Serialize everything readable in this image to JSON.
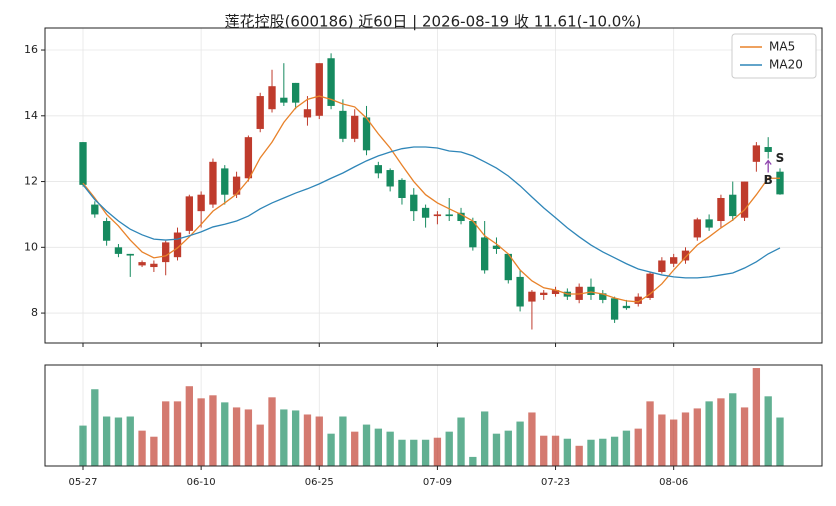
{
  "chart_data": {
    "type": "candlestick",
    "title": "莲花控股(600186) 近60日  |  2026-08-19 收 11.61(-10.0%)",
    "categories": [
      "05-27",
      null,
      null,
      null,
      null,
      null,
      null,
      null,
      null,
      null,
      "06-10",
      null,
      null,
      null,
      null,
      null,
      null,
      null,
      null,
      null,
      "06-25",
      null,
      null,
      null,
      null,
      null,
      null,
      null,
      null,
      null,
      "07-09",
      null,
      null,
      null,
      null,
      null,
      null,
      null,
      null,
      null,
      "07-23",
      null,
      null,
      null,
      null,
      null,
      null,
      null,
      null,
      null,
      "08-06",
      null,
      null,
      null,
      null,
      null,
      null,
      null,
      null,
      null
    ],
    "open": [
      13.2,
      11.3,
      10.8,
      10.0,
      9.8,
      9.45,
      9.4,
      9.55,
      9.7,
      10.5,
      11.1,
      11.3,
      12.4,
      11.6,
      12.1,
      13.6,
      14.2,
      14.55,
      15.0,
      13.95,
      14.0,
      15.75,
      14.15,
      13.3,
      13.95,
      12.5,
      12.35,
      12.05,
      11.6,
      11.2,
      10.95,
      11.0,
      11.05,
      10.8,
      10.3,
      10.05,
      9.8,
      9.1,
      8.35,
      8.55,
      8.58,
      8.65,
      8.4,
      8.8,
      8.6,
      8.45,
      8.22,
      8.28,
      8.46,
      9.25,
      9.5,
      9.6,
      10.3,
      10.85,
      10.8,
      11.6,
      10.9,
      12.6,
      13.05,
      12.3
    ],
    "high": [
      13.2,
      11.4,
      10.9,
      10.1,
      9.8,
      9.6,
      9.6,
      10.2,
      10.6,
      11.6,
      11.7,
      12.7,
      12.5,
      12.3,
      13.4,
      14.7,
      15.4,
      15.6,
      15.0,
      14.6,
      15.6,
      15.9,
      14.5,
      14.2,
      14.3,
      12.6,
      12.4,
      12.1,
      11.8,
      11.3,
      11.1,
      11.5,
      11.2,
      10.9,
      10.8,
      10.3,
      9.8,
      9.3,
      8.7,
      8.7,
      8.8,
      8.75,
      8.9,
      9.05,
      8.7,
      8.5,
      8.4,
      8.6,
      9.25,
      9.7,
      9.8,
      10.0,
      10.9,
      11.0,
      11.6,
      12.0,
      12.0,
      13.2,
      13.35,
      12.4
    ],
    "low": [
      11.85,
      10.9,
      10.05,
      9.7,
      9.1,
      9.4,
      9.25,
      9.15,
      9.6,
      10.4,
      10.6,
      11.2,
      11.3,
      11.5,
      12.0,
      13.5,
      14.1,
      14.3,
      14.2,
      13.7,
      13.9,
      14.2,
      13.2,
      13.2,
      12.8,
      12.1,
      11.7,
      11.3,
      10.8,
      10.6,
      10.7,
      10.8,
      10.7,
      9.9,
      9.2,
      9.8,
      8.9,
      8.05,
      7.5,
      8.4,
      8.5,
      8.4,
      8.3,
      8.4,
      8.3,
      7.7,
      8.1,
      8.2,
      8.4,
      9.2,
      9.4,
      9.5,
      10.2,
      10.5,
      10.6,
      10.8,
      10.8,
      12.3,
      12.7,
      11.6
    ],
    "close": [
      11.9,
      11.0,
      10.2,
      9.8,
      9.75,
      9.55,
      9.5,
      10.15,
      10.45,
      11.55,
      11.6,
      12.6,
      11.6,
      12.15,
      13.35,
      14.6,
      14.9,
      14.4,
      14.4,
      14.2,
      15.6,
      14.3,
      13.3,
      14.0,
      12.95,
      12.25,
      11.85,
      11.5,
      11.1,
      10.9,
      11.0,
      10.95,
      10.8,
      10.0,
      9.3,
      9.95,
      9.0,
      8.2,
      8.65,
      8.62,
      8.7,
      8.5,
      8.8,
      8.55,
      8.4,
      7.8,
      8.15,
      8.5,
      9.2,
      9.6,
      9.7,
      9.9,
      10.85,
      10.6,
      11.5,
      10.95,
      12.0,
      13.1,
      12.9,
      11.61
    ],
    "series": [
      {
        "name": "MA5",
        "color": "#e8822a",
        "values": [
          11.95,
          11.5,
          11.0,
          10.65,
          10.22,
          9.86,
          9.68,
          9.74,
          9.98,
          10.32,
          10.7,
          11.1,
          11.35,
          11.62,
          12.05,
          12.72,
          13.2,
          13.8,
          14.24,
          14.5,
          14.6,
          14.5,
          14.36,
          14.27,
          13.93,
          13.45,
          13.02,
          12.5,
          12.0,
          11.6,
          11.35,
          11.17,
          11.0,
          10.8,
          10.35,
          10.1,
          9.8,
          9.31,
          8.98,
          8.77,
          8.7,
          8.58,
          8.58,
          8.64,
          8.58,
          8.46,
          8.37,
          8.34,
          8.58,
          8.89,
          9.31,
          9.7,
          10.07,
          10.32,
          10.59,
          10.83,
          11.14,
          11.6,
          12.1,
          12.1
        ]
      },
      {
        "name": "MA20",
        "color": "#2f86b8",
        "values": [
          11.9,
          11.45,
          11.1,
          10.8,
          10.55,
          10.38,
          10.25,
          10.22,
          10.25,
          10.35,
          10.47,
          10.62,
          10.7,
          10.8,
          10.95,
          11.17,
          11.35,
          11.5,
          11.65,
          11.78,
          11.93,
          12.1,
          12.26,
          12.45,
          12.63,
          12.78,
          12.9,
          13.0,
          13.05,
          13.05,
          13.02,
          12.93,
          12.9,
          12.78,
          12.6,
          12.41,
          12.17,
          11.87,
          11.53,
          11.2,
          10.9,
          10.59,
          10.32,
          10.07,
          9.86,
          9.68,
          9.5,
          9.34,
          9.25,
          9.16,
          9.1,
          9.07,
          9.07,
          9.1,
          9.16,
          9.22,
          9.37,
          9.56,
          9.8,
          9.98
        ]
      }
    ],
    "ylim": [
      7.09,
      16.67
    ],
    "yticks": [
      8,
      10,
      12,
      14,
      16
    ],
    "up_color": "#bf3b2c",
    "down_color": "#168a5f",
    "volume": {
      "ylim": [
        0,
        100
      ],
      "values": [
        40,
        76,
        49,
        48,
        49,
        35,
        29,
        64,
        64,
        79,
        67,
        70,
        63,
        58,
        56,
        41,
        68,
        56,
        55,
        51,
        49,
        32,
        49,
        34,
        41,
        37,
        34,
        26,
        26,
        26,
        28,
        34,
        48,
        9,
        54,
        32,
        35,
        44,
        53,
        30,
        30,
        27,
        20,
        26,
        27,
        29,
        35,
        37,
        64,
        51,
        46,
        53,
        57,
        64,
        67,
        72,
        58,
        97,
        69,
        48
      ]
    },
    "signals": [
      {
        "index": 58,
        "label": "B",
        "color": "#8e44ad"
      },
      {
        "index": 59,
        "label": "S",
        "color": "#8e44ad"
      }
    ],
    "legend": "upper right",
    "grid": true
  }
}
